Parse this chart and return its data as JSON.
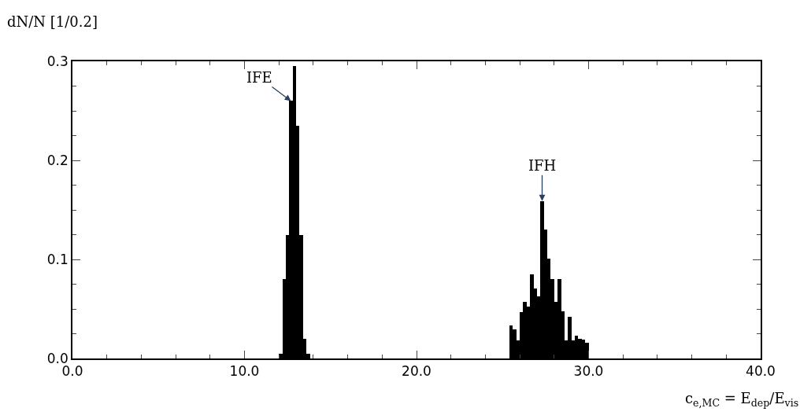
{
  "chart_data": {
    "type": "bar",
    "ylabel": "dN/N [1/0.2]",
    "xlabel": "c$_{e,MC}$ = E$_{dep}$/E$_{vis}$",
    "x": [
      12.1,
      12.3,
      12.5,
      12.7,
      12.9,
      13.1,
      13.3,
      13.5,
      13.7,
      25.5,
      25.7,
      25.9,
      26.1,
      26.3,
      26.5,
      26.7,
      26.9,
      27.1,
      27.3,
      27.5,
      27.7,
      27.9,
      28.1,
      28.3,
      28.5,
      28.7,
      28.9,
      29.1,
      29.3,
      29.5,
      29.7,
      29.9
    ],
    "values": [
      0.005,
      0.08,
      0.125,
      0.26,
      0.295,
      0.235,
      0.125,
      0.02,
      0.005,
      0.033,
      0.029,
      0.018,
      0.047,
      0.057,
      0.052,
      0.085,
      0.071,
      0.063,
      0.159,
      0.13,
      0.101,
      0.08,
      0.057,
      0.08,
      0.048,
      0.018,
      0.042,
      0.018,
      0.023,
      0.02,
      0.019,
      0.016
    ],
    "color": "#000000",
    "xlim": [
      0,
      40
    ],
    "ylim": [
      0,
      0.3
    ],
    "xticks": [
      {
        "value": 0,
        "label": "0.0"
      },
      {
        "value": 10,
        "label": "10.0"
      },
      {
        "value": 20,
        "label": "20.0"
      },
      {
        "value": 30,
        "label": "30.0"
      },
      {
        "value": 40,
        "label": "40.0"
      }
    ],
    "yticks": [
      {
        "value": 0,
        "label": "0.0"
      },
      {
        "value": 0.1,
        "label": "0.1"
      },
      {
        "value": 0.2,
        "label": "0.2"
      },
      {
        "value": 0.3,
        "label": "0.3"
      }
    ],
    "annotations": [
      {
        "text": "IFE",
        "x": 12.7,
        "y": 0.26
      },
      {
        "text": "IFH",
        "x": 27.3,
        "y": 0.159
      }
    ]
  }
}
